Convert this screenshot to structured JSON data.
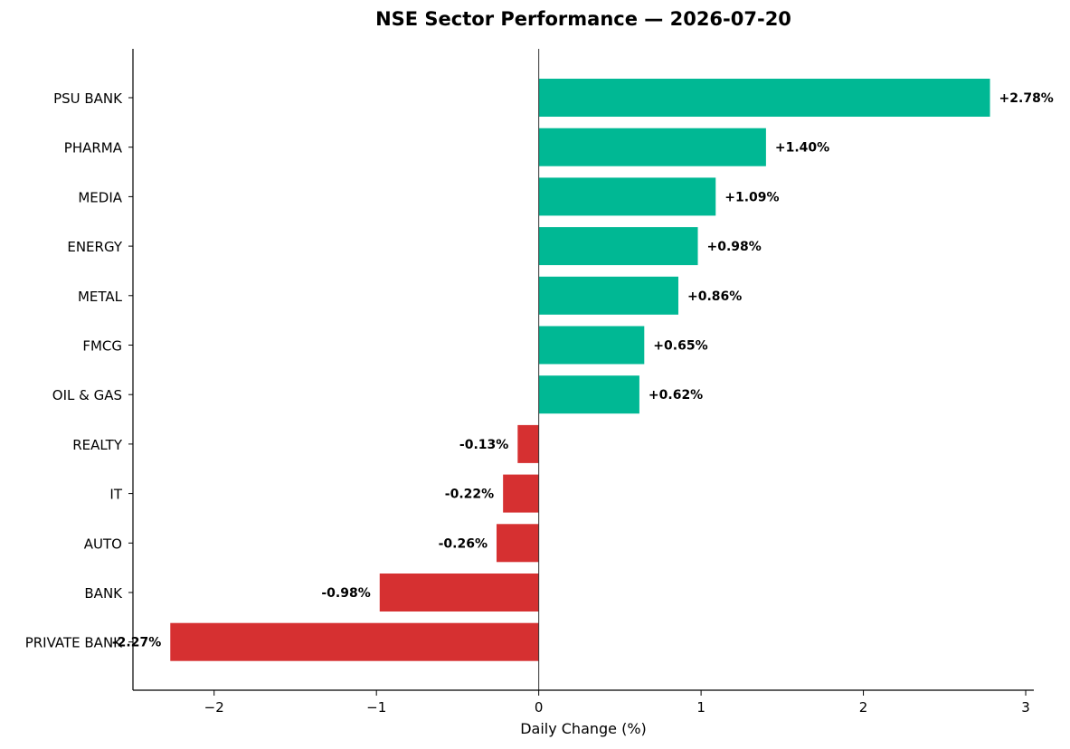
{
  "chart_data": {
    "type": "bar",
    "orientation": "horizontal",
    "title": "NSE Sector Performance — 2026-07-20",
    "xlabel": "Daily Change (%)",
    "ylabel": "",
    "xlim": [
      -2.5,
      3.05
    ],
    "xticks": [
      -2,
      -1,
      0,
      1,
      2,
      3
    ],
    "xtick_labels": [
      "−2",
      "−1",
      "0",
      "1",
      "2",
      "3"
    ],
    "grid": false,
    "categories": [
      "PSU BANK",
      "PHARMA",
      "MEDIA",
      "ENERGY",
      "METAL",
      "FMCG",
      "OIL & GAS",
      "REALTY",
      "IT",
      "AUTO",
      "BANK",
      "PRIVATE BANK"
    ],
    "values": [
      2.78,
      1.4,
      1.09,
      0.98,
      0.86,
      0.65,
      0.62,
      -0.13,
      -0.22,
      -0.26,
      -0.98,
      -2.27
    ],
    "value_labels": [
      "+2.78%",
      "+1.40%",
      "+1.09%",
      "+0.98%",
      "+0.86%",
      "+0.65%",
      "+0.62%",
      "-0.13%",
      "-0.22%",
      "-0.26%",
      "-0.98%",
      "-2.27%"
    ],
    "colors": {
      "positive": "#00b894",
      "negative": "#d63031"
    }
  }
}
